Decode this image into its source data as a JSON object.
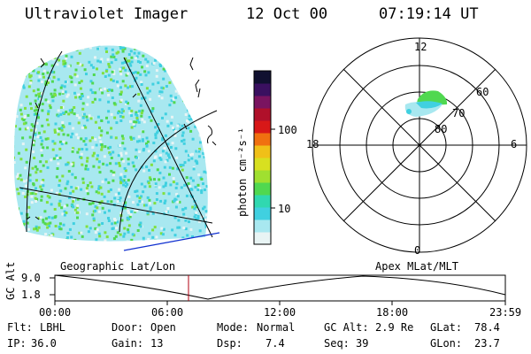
{
  "header": {
    "instrument": "Ultraviolet Imager",
    "date": "12 Oct 00",
    "time": "07:19:14 UT"
  },
  "colorbar": {
    "unit_label": "photon cm⁻²s⁻¹",
    "ticks": [
      "100",
      "10"
    ],
    "colors": [
      "#101030",
      "#3a1060",
      "#7a1460",
      "#b0102a",
      "#d81818",
      "#f07010",
      "#f0c018",
      "#d8e020",
      "#a0e030",
      "#50d850",
      "#30d8b0",
      "#40d0e0",
      "#a8e8f0",
      "#e8f4f4"
    ]
  },
  "polar_plot": {
    "hour_labels": {
      "top": "12",
      "left": "18",
      "right": "6",
      "bottom": "0"
    },
    "lat_labels": [
      "60",
      "70",
      "80"
    ]
  },
  "panel_labels": {
    "left": "Geographic Lat/Lon",
    "right": "Apex MLat/MLT"
  },
  "altitude_strip": {
    "axis_label": "GC Alt",
    "y_ticks": [
      "9.0",
      "1.8"
    ],
    "x_ticks": [
      "00:00",
      "06:00",
      "12:00",
      "18:00",
      "23:59"
    ],
    "marker_time": "07:19"
  },
  "info": {
    "flt": {
      "label": "Flt:",
      "value": "LBHL"
    },
    "ip": {
      "label": "IP:",
      "value": "36.0"
    },
    "door": {
      "label": "Door:",
      "value": "Open"
    },
    "gain": {
      "label": "Gain:",
      "value": "13"
    },
    "mode": {
      "label": "Mode:",
      "value": "Normal"
    },
    "dsp": {
      "label": "Dsp:",
      "value": "7.4"
    },
    "gcalt": {
      "label": "GC Alt:",
      "value": "2.9 Re"
    },
    "seq": {
      "label": "Seq:",
      "value": "39"
    },
    "glat": {
      "label": "GLat:",
      "value": "78.4"
    },
    "glon": {
      "label": "GLon:",
      "value": "23.7"
    }
  }
}
